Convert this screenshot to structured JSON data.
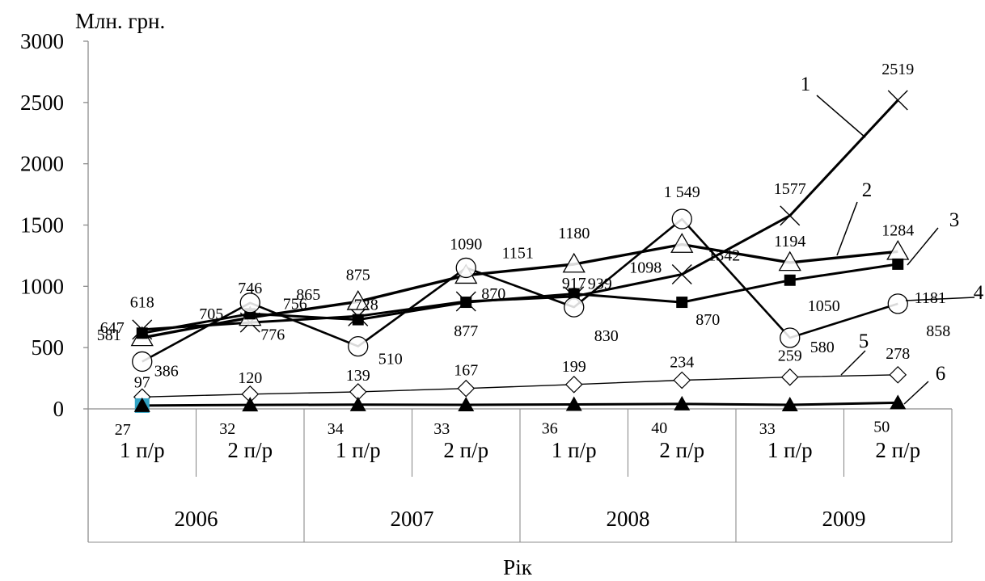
{
  "chart_data": {
    "type": "line",
    "ylabel": "Млн. грн.",
    "xlabel": "Рік",
    "ylim": [
      0,
      3000
    ],
    "yticks": [
      "0",
      "500",
      "1000",
      "1500",
      "2000",
      "2500",
      "3000"
    ],
    "years": [
      "2006",
      "2007",
      "2008",
      "2009"
    ],
    "categories": [
      "1 п/р",
      "2 п/р",
      "1 п/р",
      "2 п/р",
      "1 п/р",
      "2 п/р",
      "1 п/р",
      "2 п/р"
    ],
    "grid": false,
    "series": [
      {
        "name": "1",
        "marker": "x",
        "values": [
          647,
          705,
          756,
          877,
          917,
          1098,
          1577,
          2519
        ],
        "labels": [
          "647",
          "705",
          "756",
          "877",
          "917",
          "1098",
          "1577",
          "2519"
        ]
      },
      {
        "name": "2",
        "marker": "triangle",
        "values": [
          581,
          746,
          875,
          1090,
          1180,
          1342,
          1194,
          1284
        ],
        "labels": [
          "581",
          "746",
          "875",
          "1090",
          "1180",
          "1342",
          "1194",
          "1284"
        ]
      },
      {
        "name": "3",
        "marker": "square",
        "values": [
          618,
          776,
          728,
          870,
          939,
          870,
          1050,
          1181
        ],
        "labels": [
          "618",
          "776",
          "728",
          "870",
          "939",
          "870",
          "1050",
          "1181"
        ]
      },
      {
        "name": "4",
        "marker": "circle",
        "values": [
          386,
          865,
          510,
          1151,
          830,
          1549,
          580,
          858
        ],
        "labels": [
          "386",
          "865",
          "510",
          "1151",
          "830",
          "1 549",
          "580",
          "858"
        ]
      },
      {
        "name": "5",
        "marker": "diamond",
        "values": [
          97,
          120,
          139,
          167,
          199,
          234,
          259,
          278
        ],
        "labels": [
          "97",
          "120",
          "139",
          "167",
          "199",
          "234",
          "259",
          "278"
        ]
      },
      {
        "name": "6",
        "marker": "filled-triangle",
        "values": [
          27,
          32,
          34,
          33,
          36,
          40,
          33,
          50
        ],
        "labels": [
          "27",
          "32",
          "34",
          "33",
          "36",
          "40",
          "33",
          "50"
        ]
      }
    ],
    "first_point_marker_color": "#31a3c4"
  }
}
